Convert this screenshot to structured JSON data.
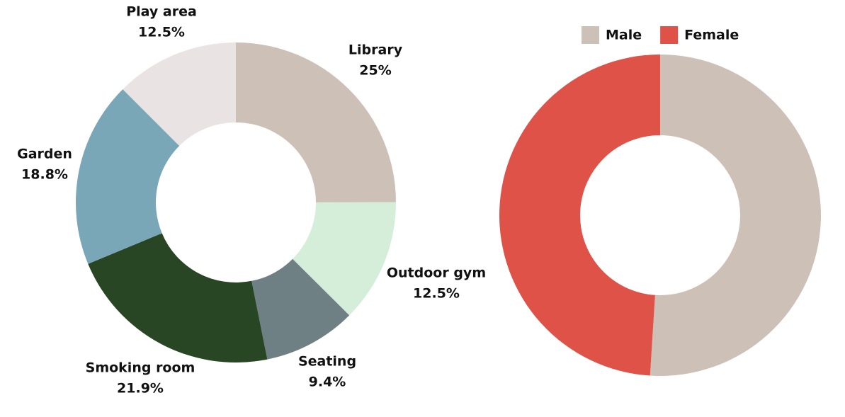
{
  "chart_data": [
    {
      "type": "donut",
      "categories": [
        "Library",
        "Outdoor gym",
        "Seating",
        "Smoking room",
        "Garden",
        "Play area"
      ],
      "values": [
        25,
        12.5,
        9.4,
        21.9,
        18.8,
        12.5
      ],
      "value_labels": [
        "25%",
        "12.5%",
        "9.4%",
        "21.9%",
        "18.8%",
        "12.5%"
      ],
      "colors": [
        "#cdc0b7",
        "#d5eed9",
        "#6f8084",
        "#284524",
        "#7aa7b8",
        "#eae3e3"
      ]
    },
    {
      "type": "donut",
      "categories": [
        "Male",
        "Female"
      ],
      "values": [
        51,
        49
      ],
      "colors": [
        "#cdc0b7",
        "#de5247"
      ],
      "legend": "top"
    }
  ]
}
